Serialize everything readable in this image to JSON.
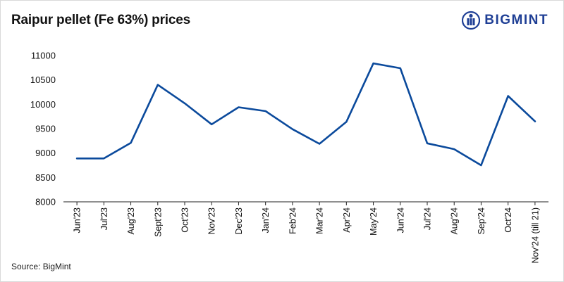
{
  "title": "Raipur pellet (Fe 63%) prices",
  "logo": {
    "text": "BIGMINT",
    "icon": "bigmint-logo-icon"
  },
  "source": "Source: BigMint",
  "colors": {
    "line": "#0b4a9c",
    "axis": "#222222",
    "logo": "#1f3f95"
  },
  "chart_data": {
    "type": "line",
    "title": "Raipur pellet (Fe 63%) prices",
    "xlabel": "",
    "ylabel": "",
    "ylim": [
      8000,
      11000
    ],
    "yticks": [
      8000,
      8500,
      9000,
      9500,
      10000,
      10500,
      11000
    ],
    "grid": false,
    "legend": "none",
    "categories": [
      "Jun'23",
      "Jul'23",
      "Aug'23",
      "Sept'23",
      "Oct'23",
      "Nov'23",
      "Dec'23",
      "Jan'24",
      "Feb'24",
      "Mar'24",
      "Apr'24",
      "May'24",
      "Jun'24",
      "Jul'24",
      "Aug'24",
      "Sep'24",
      "Oct'24",
      "Nov'24 (till 21)"
    ],
    "series": [
      {
        "values": [
          8890,
          8890,
          9210,
          10400,
          10020,
          9590,
          9940,
          9860,
          9490,
          9190,
          9640,
          10840,
          10740,
          9200,
          9080,
          8750,
          10170,
          9650
        ]
      }
    ]
  }
}
